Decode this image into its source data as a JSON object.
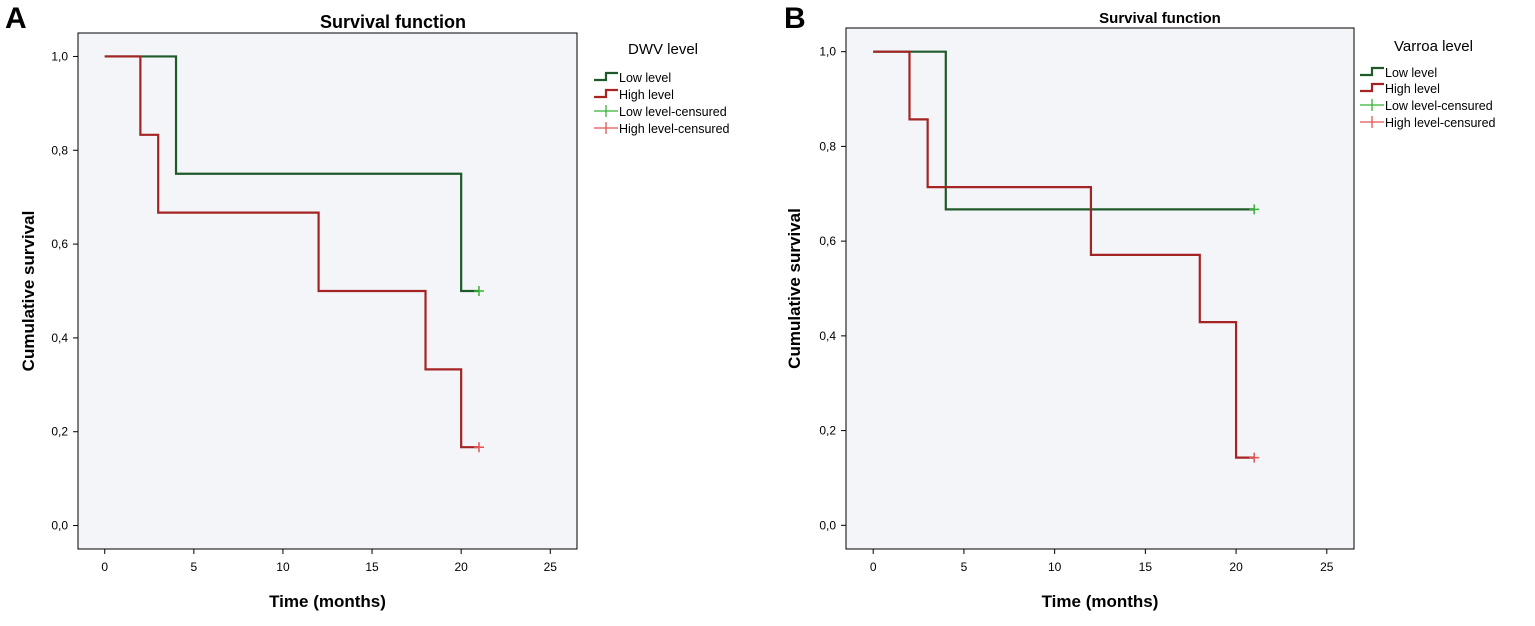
{
  "figure": {
    "panel_a_letter": "A",
    "panel_b_letter": "B"
  },
  "colors": {
    "low_level": "#1e5a2a",
    "high_level": "#a42424",
    "low_level_censored": "#36b336",
    "high_level_censored": "#e35454",
    "plot_background": "#f4f5f8",
    "axis": "#000000"
  },
  "chart_data": [
    {
      "type": "line",
      "subtype": "kaplan-meier step",
      "title": "Survival function",
      "xlabel": "Time (months)",
      "ylabel": "Cumulative survival",
      "xlim": [
        -1.5,
        26.5
      ],
      "ylim": [
        -0.05,
        1.05
      ],
      "xticks": [
        0,
        5,
        10,
        15,
        20,
        25
      ],
      "xtick_labels": [
        "0",
        "5",
        "10",
        "15",
        "20",
        "25"
      ],
      "yticks": [
        0.0,
        0.2,
        0.4,
        0.6,
        0.8,
        1.0
      ],
      "ytick_labels": [
        "0,0",
        "0,2",
        "0,4",
        "0,6",
        "0,8",
        "1,0"
      ],
      "grid": false,
      "legend_title": "DWV level",
      "legend_position": "outside-right-top",
      "legend": [
        "Low level",
        "High level",
        "Low level-censured",
        "High level-censured"
      ],
      "series": [
        {
          "name": "Low level",
          "step_x": [
            0,
            4,
            20,
            21
          ],
          "step_y": [
            1.0,
            0.75,
            0.5,
            0.5
          ],
          "censored": [
            [
              21,
              0.5
            ]
          ]
        },
        {
          "name": "High level",
          "step_x": [
            0,
            2,
            3,
            12,
            18,
            20,
            21
          ],
          "step_y": [
            1.0,
            0.833,
            0.667,
            0.5,
            0.333,
            0.167,
            0.167
          ],
          "censored": [
            [
              21,
              0.167
            ]
          ]
        }
      ]
    },
    {
      "type": "line",
      "subtype": "kaplan-meier step",
      "title": "Survival function",
      "xlabel": "Time (months)",
      "ylabel": "Cumulative survival",
      "xlim": [
        -1.5,
        26.5
      ],
      "ylim": [
        -0.05,
        1.05
      ],
      "xticks": [
        0,
        5,
        10,
        15,
        20,
        25
      ],
      "xtick_labels": [
        "0",
        "5",
        "10",
        "15",
        "20",
        "25"
      ],
      "yticks": [
        0.0,
        0.2,
        0.4,
        0.6,
        0.8,
        1.0
      ],
      "ytick_labels": [
        "0,0",
        "0,2",
        "0,4",
        "0,6",
        "0,8",
        "1,0"
      ],
      "grid": false,
      "legend_title": "Varroa level",
      "legend_position": "outside-right-top",
      "legend": [
        "Low level",
        "High level",
        "Low level-censured",
        "High level-censured"
      ],
      "series": [
        {
          "name": "Low level",
          "step_x": [
            0,
            4,
            21
          ],
          "step_y": [
            1.0,
            0.667,
            0.667
          ],
          "censored": [
            [
              21,
              0.667
            ]
          ]
        },
        {
          "name": "High level",
          "step_x": [
            0,
            2,
            3,
            12,
            18,
            20,
            21
          ],
          "step_y": [
            1.0,
            0.857,
            0.714,
            0.571,
            0.429,
            0.143,
            0.143
          ],
          "censored": [
            [
              21,
              0.143
            ]
          ]
        }
      ]
    }
  ]
}
